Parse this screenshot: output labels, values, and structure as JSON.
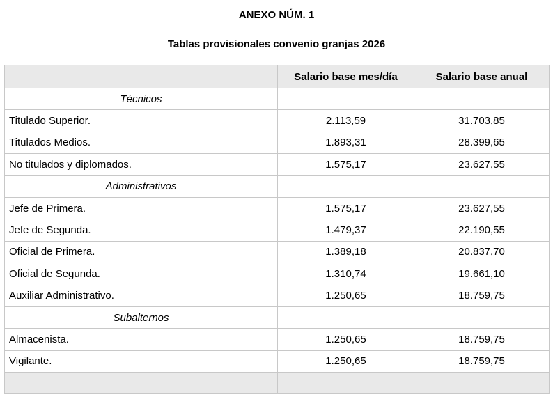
{
  "titles": {
    "main": "ANEXO NÚM. 1",
    "sub": "Tablas provisionales convenio granjas 2026"
  },
  "table": {
    "columns": [
      "",
      "Salario base mes/día",
      "Salario base anual"
    ],
    "rows": [
      {
        "type": "section",
        "label": "Técnicos"
      },
      {
        "type": "data",
        "label": "Titulado Superior.",
        "monthly": "2.113,59",
        "annual": "31.703,85"
      },
      {
        "type": "data",
        "label": "Titulados Medios.",
        "monthly": "1.893,31",
        "annual": "28.399,65"
      },
      {
        "type": "data",
        "label": "No titulados y diplomados.",
        "monthly": "1.575,17",
        "annual": "23.627,55"
      },
      {
        "type": "section",
        "label": "Administrativos"
      },
      {
        "type": "data",
        "label": "Jefe de Primera.",
        "monthly": "1.575,17",
        "annual": "23.627,55"
      },
      {
        "type": "data",
        "label": "Jefe de Segunda.",
        "monthly": "1.479,37",
        "annual": "22.190,55"
      },
      {
        "type": "data",
        "label": "Oficial de Primera.",
        "monthly": "1.389,18",
        "annual": "20.837,70"
      },
      {
        "type": "data",
        "label": "Oficial de Segunda.",
        "monthly": "1.310,74",
        "annual": "19.661,10"
      },
      {
        "type": "data",
        "label": "Auxiliar Administrativo.",
        "monthly": "1.250,65",
        "annual": "18.759,75"
      },
      {
        "type": "section",
        "label": "Subalternos"
      },
      {
        "type": "data",
        "label": "Almacenista.",
        "monthly": "1.250,65",
        "annual": "18.759,75"
      },
      {
        "type": "data",
        "label": "Vigilante.",
        "monthly": "1.250,65",
        "annual": "18.759,75"
      }
    ]
  },
  "colors": {
    "header_bg": "#e9e9e9",
    "border": "#c8c8c8",
    "text": "#000000",
    "page_bg": "#ffffff"
  }
}
